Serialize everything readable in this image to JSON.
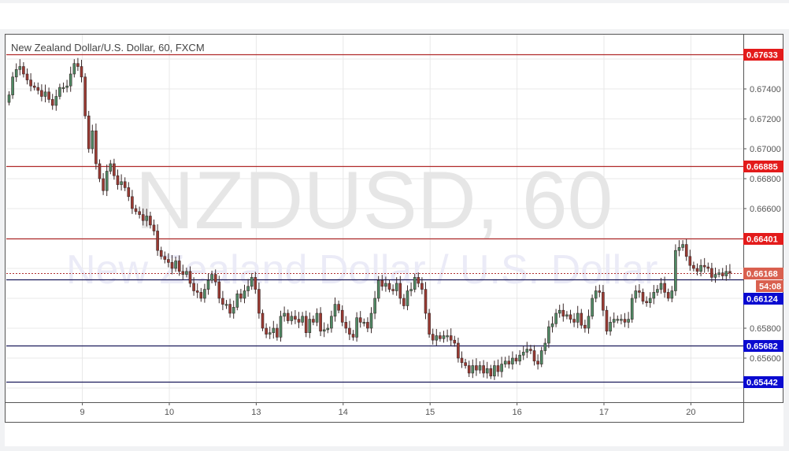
{
  "chart_data": {
    "type": "candlestick",
    "title": "New Zealand Dollar/U.S. Dollar, 60, FXCM",
    "watermark": {
      "symbol": "NZDUSD, 60",
      "description": "New Zealand Dollar / U.S. Dollar"
    },
    "ylim": [
      0.6532,
      0.6778
    ],
    "grid": true,
    "y_ticks": [
      "0.67400",
      "0.67200",
      "0.67000",
      "0.66800",
      "0.66600",
      "0.65800",
      "0.65600"
    ],
    "x_ticks": [
      {
        "label": "9",
        "index": 21
      },
      {
        "label": "10",
        "index": 45
      },
      {
        "label": "13",
        "index": 69
      },
      {
        "label": "14",
        "index": 93
      },
      {
        "label": "15",
        "index": 117
      },
      {
        "label": "16",
        "index": 141
      },
      {
        "label": "17",
        "index": 165
      },
      {
        "label": "20",
        "index": 189
      }
    ],
    "first_open": 0.6731,
    "closes": [
      0.6736,
      0.6748,
      0.6753,
      0.6755,
      0.675,
      0.6746,
      0.6742,
      0.6741,
      0.6739,
      0.6735,
      0.6738,
      0.6733,
      0.6729,
      0.6735,
      0.6741,
      0.6741,
      0.6742,
      0.675,
      0.6757,
      0.6755,
      0.6748,
      0.6722,
      0.67,
      0.6712,
      0.669,
      0.668,
      0.6672,
      0.6685,
      0.669,
      0.6682,
      0.6676,
      0.6678,
      0.6674,
      0.6668,
      0.666,
      0.6658,
      0.6656,
      0.6652,
      0.6655,
      0.6649,
      0.6645,
      0.6632,
      0.6628,
      0.6626,
      0.6624,
      0.662,
      0.6625,
      0.6618,
      0.6616,
      0.6618,
      0.661,
      0.6605,
      0.6604,
      0.66,
      0.6606,
      0.6612,
      0.6616,
      0.6611,
      0.66,
      0.6596,
      0.6596,
      0.659,
      0.6594,
      0.6603,
      0.66,
      0.6605,
      0.6608,
      0.6614,
      0.6606,
      0.659,
      0.658,
      0.6576,
      0.6577,
      0.658,
      0.6574,
      0.6588,
      0.659,
      0.6585,
      0.6588,
      0.6586,
      0.6584,
      0.6588,
      0.6577,
      0.6586,
      0.6584,
      0.659,
      0.6578,
      0.6579,
      0.658,
      0.6588,
      0.6596,
      0.6592,
      0.6584,
      0.658,
      0.6576,
      0.6574,
      0.6587,
      0.6584,
      0.6584,
      0.658,
      0.659,
      0.66,
      0.6612,
      0.6608,
      0.661,
      0.6606,
      0.6605,
      0.661,
      0.66,
      0.6595,
      0.6605,
      0.6606,
      0.6614,
      0.661,
      0.6606,
      0.659,
      0.6576,
      0.6572,
      0.6575,
      0.6573,
      0.6575,
      0.6575,
      0.6572,
      0.657,
      0.656,
      0.6557,
      0.6555,
      0.655,
      0.6555,
      0.6552,
      0.6555,
      0.655,
      0.6553,
      0.6548,
      0.6555,
      0.6551,
      0.6556,
      0.6558,
      0.6556,
      0.656,
      0.6558,
      0.6562,
      0.6564,
      0.6566,
      0.6565,
      0.6558,
      0.6556,
      0.6565,
      0.657,
      0.6581,
      0.6583,
      0.659,
      0.6592,
      0.6588,
      0.6589,
      0.6586,
      0.6584,
      0.659,
      0.6582,
      0.658,
      0.6588,
      0.66,
      0.6605,
      0.6604,
      0.6592,
      0.6578,
      0.6584,
      0.6586,
      0.6586,
      0.6586,
      0.6584,
      0.6586,
      0.66,
      0.6605,
      0.6604,
      0.6598,
      0.6597,
      0.66,
      0.6604,
      0.6606,
      0.661,
      0.6604,
      0.66,
      0.6605,
      0.6632,
      0.6634,
      0.6636,
      0.6628,
      0.6622,
      0.662,
      0.6618,
      0.6622,
      0.6621,
      0.662,
      0.6614,
      0.6616,
      0.6617,
      0.6615,
      0.6618,
      0.6617
    ],
    "horizontal_lines": [
      {
        "label": "0.67633",
        "value": 0.67633,
        "color": "#e31b1b"
      },
      {
        "label": "0.66885",
        "value": 0.66885,
        "color": "#e31b1b"
      },
      {
        "label": "0.66401",
        "value": 0.66401,
        "color": "#e31b1b"
      },
      {
        "label": "0.66124",
        "value": 0.66124,
        "color": "#0a0ad0"
      },
      {
        "label": "0.65682",
        "value": 0.65682,
        "color": "#0a0ad0"
      },
      {
        "label": "0.65442",
        "value": 0.65442,
        "color": "#0a0ad0"
      }
    ],
    "last_price": {
      "label": "0.66168",
      "value": 0.66168,
      "countdown": "54:08",
      "color": "#d9604f"
    },
    "colors": {
      "up": "#4f8a65",
      "down": "#9b3a32",
      "outline": "#3a2a2a",
      "resistance_line": "#b02a2a",
      "support_line": "#1a1a5a"
    }
  }
}
